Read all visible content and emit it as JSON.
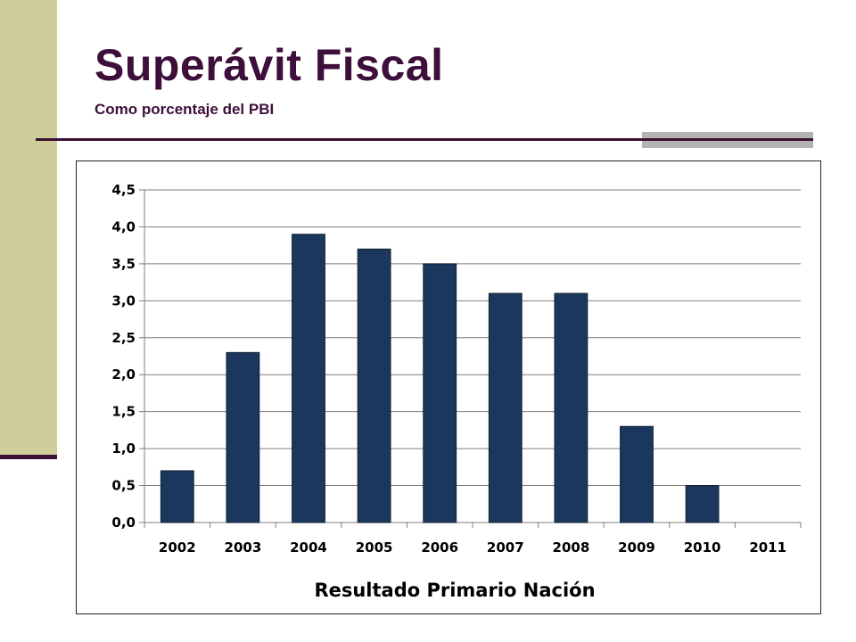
{
  "header": {
    "title": "Superávit Fiscal",
    "subtitle": "Como porcentaje del PBI"
  },
  "colors": {
    "accent_band": "#cfcd9a",
    "title_color": "#3d0f3a",
    "bar_color": "#1b375e"
  },
  "chart_data": {
    "type": "bar",
    "title": "",
    "xlabel": "Resultado Primario Nación",
    "ylabel": "",
    "categories": [
      "2002",
      "2003",
      "2004",
      "2005",
      "2006",
      "2007",
      "2008",
      "2009",
      "2010",
      "2011"
    ],
    "values": [
      0.7,
      2.3,
      3.9,
      3.7,
      3.5,
      3.1,
      3.1,
      1.3,
      0.5,
      0
    ],
    "ylim": [
      0,
      4.5
    ],
    "yticks": [
      "0,0",
      "0,5",
      "1,0",
      "1,5",
      "2,0",
      "2,5",
      "3,0",
      "3,5",
      "4,0",
      "4,5"
    ],
    "grid": true,
    "legend": "none"
  }
}
